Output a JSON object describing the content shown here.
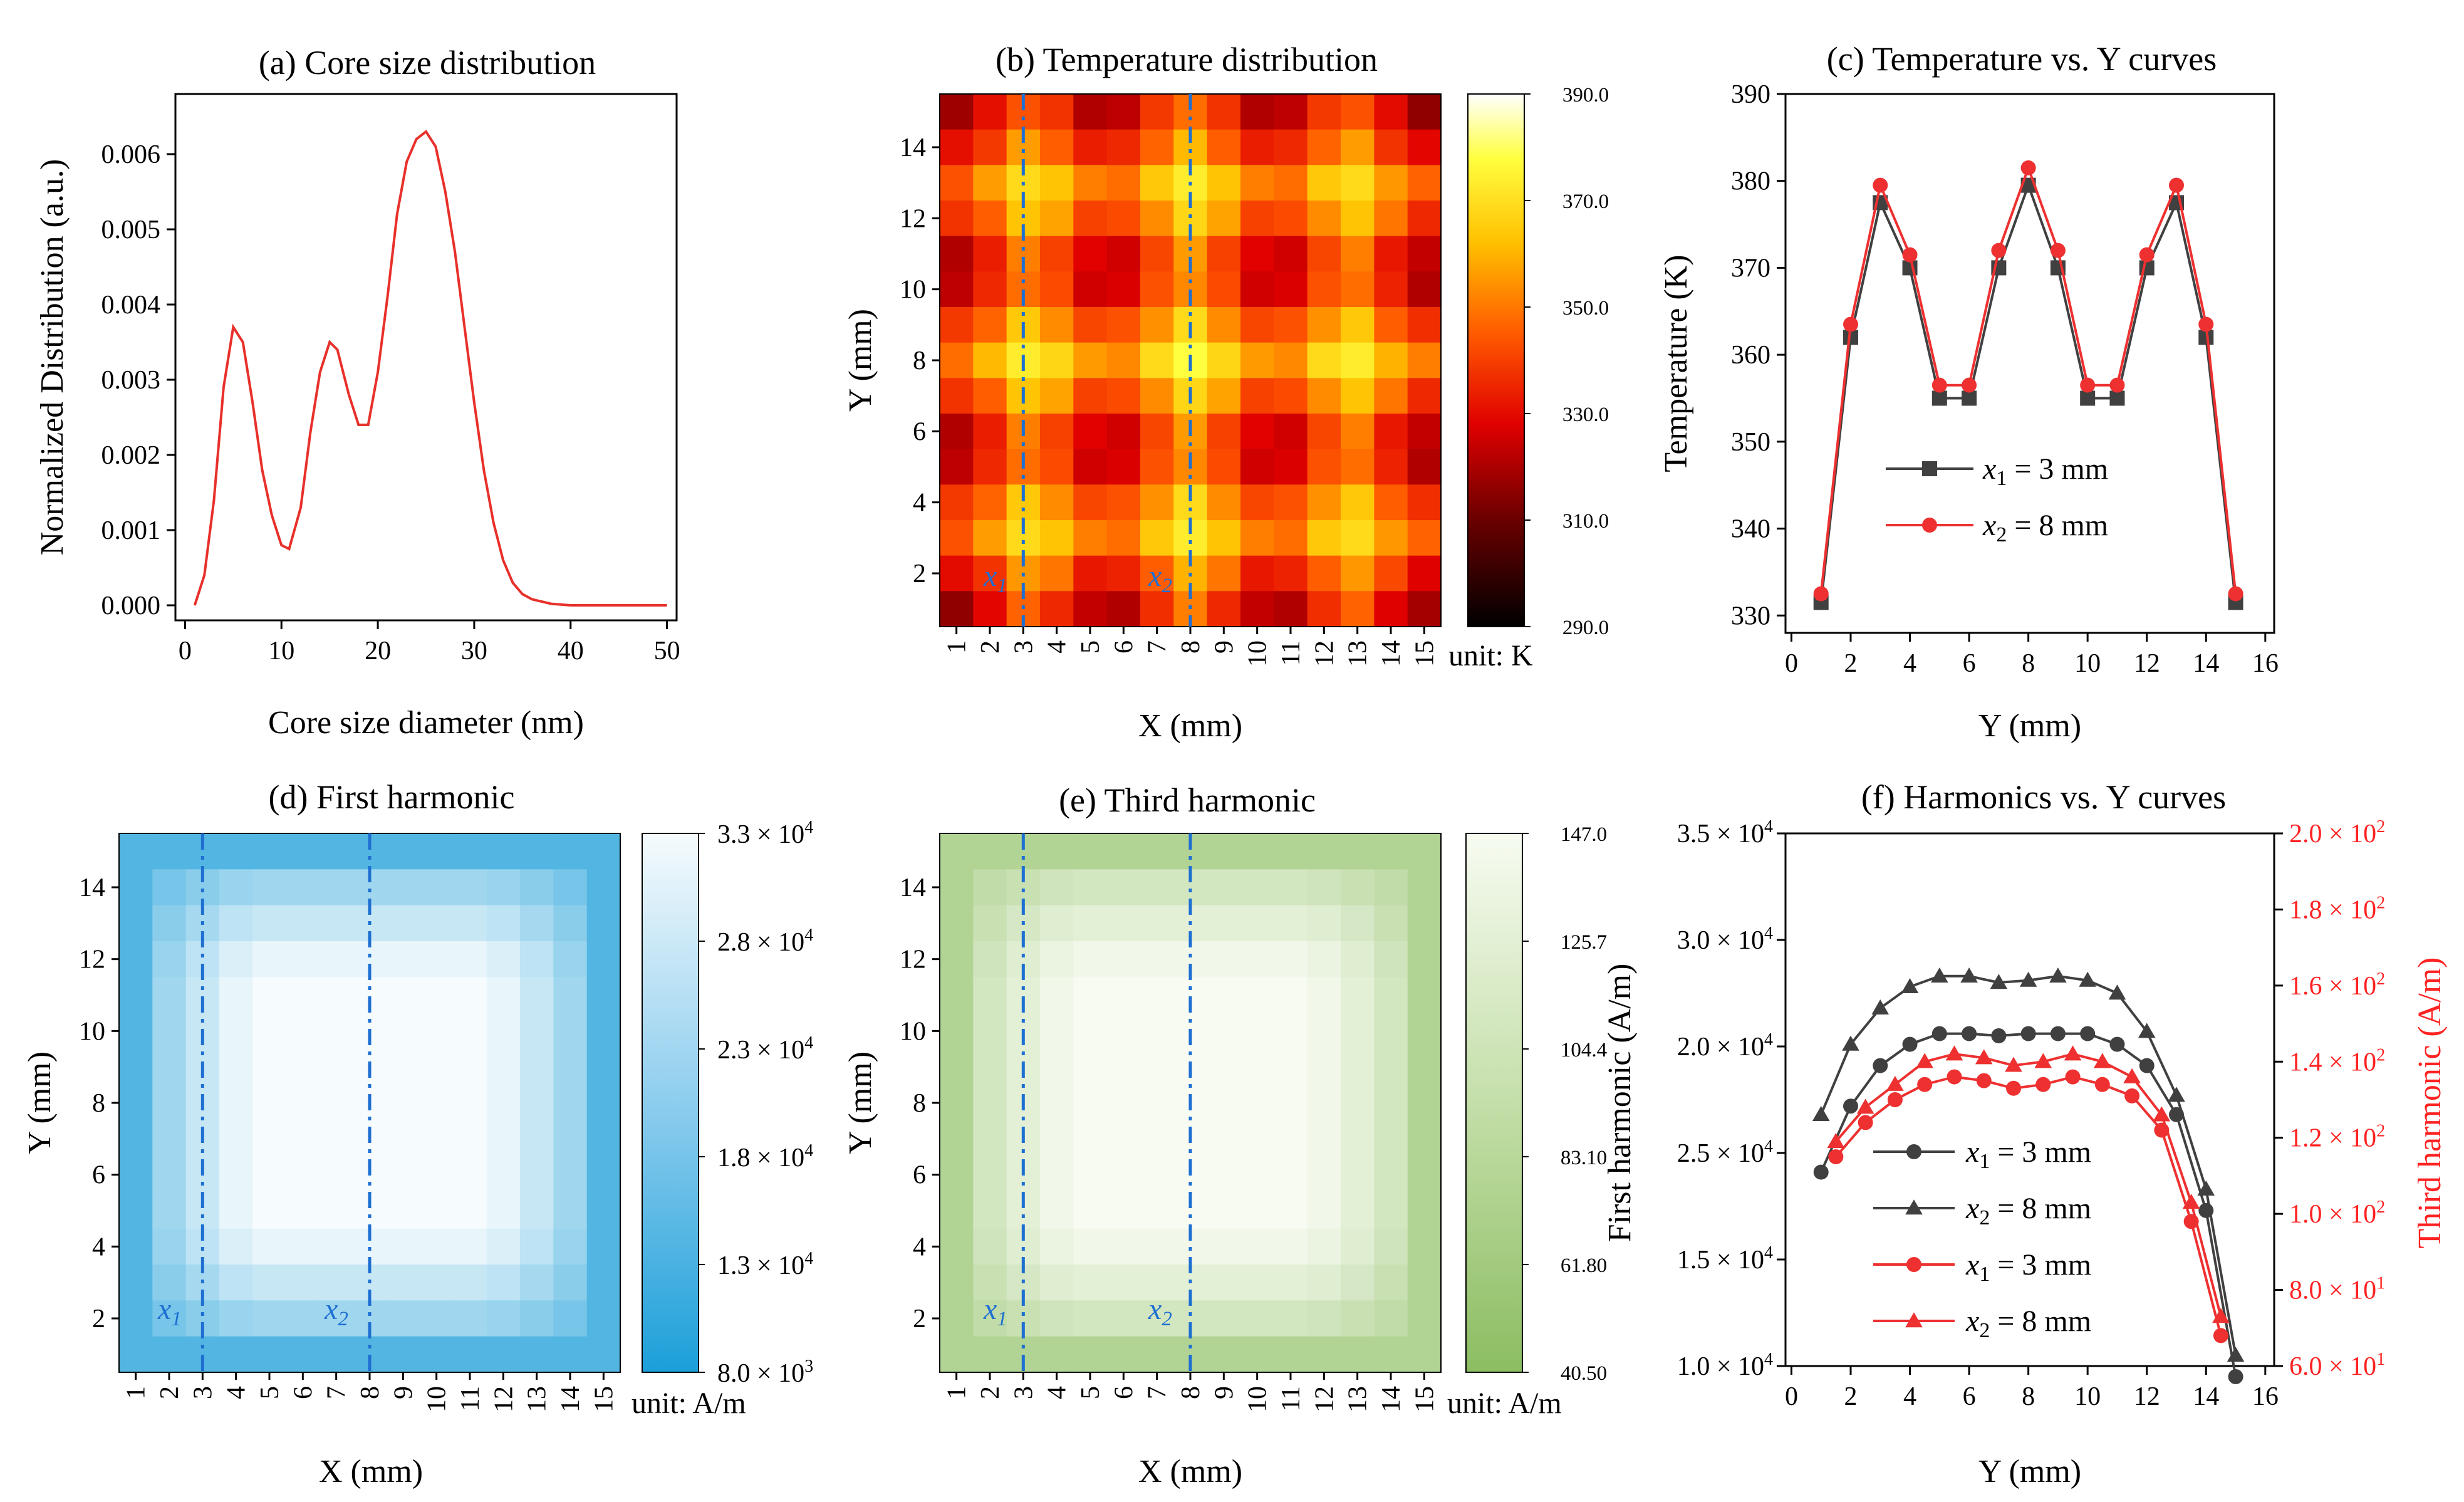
{
  "chart_data": [
    {
      "id": "a",
      "type": "line",
      "title": "(a) Core size distribution",
      "xlabel": "Core size diameter (nm)",
      "ylabel": "Normalized Distribution (a.u.)",
      "xlim": [
        -1,
        51
      ],
      "ylim": [
        -0.0002,
        0.0068
      ],
      "xticks": [
        "0",
        "10",
        "20",
        "30",
        "40",
        "50"
      ],
      "yticks": [
        "0.000",
        "0.001",
        "0.002",
        "0.003",
        "0.004",
        "0.005",
        "0.006"
      ],
      "line_color": "#e8302a",
      "series": [
        {
          "name": "distribution",
          "x": [
            1,
            2,
            3,
            4,
            5,
            6,
            7,
            8,
            9,
            10,
            10.8,
            12,
            13,
            14,
            15,
            15.8,
            17,
            18,
            19,
            20,
            21,
            22,
            23,
            24,
            25,
            26,
            27,
            28,
            29,
            30,
            31,
            32,
            33,
            34,
            35,
            36,
            38,
            40,
            42,
            44,
            46,
            48,
            50
          ],
          "y": [
            0.0,
            0.0004,
            0.0014,
            0.0029,
            0.0037,
            0.0035,
            0.0027,
            0.0018,
            0.0012,
            0.0008,
            0.00075,
            0.0013,
            0.0023,
            0.0031,
            0.0035,
            0.0034,
            0.0028,
            0.0024,
            0.0024,
            0.0031,
            0.0041,
            0.0052,
            0.0059,
            0.0062,
            0.0063,
            0.0061,
            0.0055,
            0.0047,
            0.0037,
            0.0027,
            0.0018,
            0.0011,
            0.0006,
            0.0003,
            0.00015,
            8e-05,
            2e-05,
            0.0,
            0.0,
            0.0,
            0.0,
            0.0,
            0.0
          ]
        }
      ]
    },
    {
      "id": "b",
      "type": "heatmap",
      "title": "(b) Temperature distribution",
      "xlabel": "X (mm)",
      "ylabel": "Y (mm)",
      "xticks": [
        "1",
        "2",
        "3",
        "4",
        "5",
        "6",
        "7",
        "8",
        "9",
        "10",
        "11",
        "12",
        "13",
        "14",
        "15"
      ],
      "yticks": [
        "2",
        "4",
        "6",
        "8",
        "10",
        "12",
        "14"
      ],
      "unit": "unit: K",
      "range": [
        290,
        390
      ],
      "colorbar_ticks": [
        "390.0",
        "370.0",
        "350.0",
        "330.0",
        "310.0",
        "290.0"
      ],
      "colormap": "hot",
      "marker_x1": "x",
      "marker_x1_sub": "1",
      "marker_x2": "x",
      "marker_x2_sub": "2",
      "x1": 3,
      "x2": 8
    },
    {
      "id": "c",
      "type": "line",
      "title": "(c) Temperature vs. Y curves",
      "xlabel": "Y (mm)",
      "ylabel": "Temperature (K)",
      "xlim": [
        -0.2,
        16.3
      ],
      "ylim": [
        328,
        390
      ],
      "xticks": [
        "0",
        "2",
        "4",
        "6",
        "8",
        "10",
        "12",
        "14",
        "16"
      ],
      "yticks": [
        "330",
        "340",
        "350",
        "360",
        "370",
        "380",
        "390"
      ],
      "legend": [
        {
          "pre": "x",
          "sub": "1",
          "post": " = 3 mm"
        },
        {
          "pre": "x",
          "sub": "2",
          "post": " = 8 mm"
        }
      ],
      "series": [
        {
          "name": "x1 = 3 mm",
          "color": "#404040",
          "marker": "square",
          "x": [
            1,
            2,
            3,
            4,
            5,
            6,
            7,
            8,
            9,
            10,
            11,
            12,
            13,
            14,
            15
          ],
          "y": [
            331.5,
            362,
            377.5,
            370,
            355,
            355,
            370,
            379.5,
            370,
            355,
            355,
            370,
            377.5,
            362,
            331.5
          ]
        },
        {
          "name": "x2 = 8 mm",
          "color": "#ee3030",
          "marker": "circle",
          "x": [
            1,
            2,
            3,
            4,
            5,
            6,
            7,
            8,
            9,
            10,
            11,
            12,
            13,
            14,
            15
          ],
          "y": [
            332.5,
            363.5,
            379.5,
            371.5,
            356.5,
            356.5,
            372,
            381.5,
            372,
            356.5,
            356.5,
            371.5,
            379.5,
            363.5,
            332.5
          ]
        }
      ]
    },
    {
      "id": "d",
      "type": "heatmap",
      "title": "(d) First harmonic",
      "xlabel": "X (mm)",
      "ylabel": "Y (mm)",
      "xticks": [
        "1",
        "2",
        "3",
        "4",
        "5",
        "6",
        "7",
        "8",
        "9",
        "10",
        "11",
        "12",
        "13",
        "14",
        "15"
      ],
      "yticks": [
        "2",
        "4",
        "6",
        "8",
        "10",
        "12",
        "14"
      ],
      "unit": "unit: A/m",
      "range": [
        8000,
        33000
      ],
      "colorbar_ticks": [
        {
          "m": "3.3 × 10",
          "e": "4"
        },
        {
          "m": "2.8 × 10",
          "e": "4"
        },
        {
          "m": "2.3 × 10",
          "e": "4"
        },
        {
          "m": "1.8 × 10",
          "e": "4"
        },
        {
          "m": "1.3 × 10",
          "e": "4"
        },
        {
          "m": "8.0 × 10",
          "e": "3"
        }
      ],
      "colormap": "blues",
      "marker_x1": "x",
      "marker_x1_sub": "1",
      "marker_x2": "x",
      "marker_x2_sub": "2",
      "x1": 3,
      "x2": 8
    },
    {
      "id": "e",
      "type": "heatmap",
      "title": "(e) Third harmonic",
      "xlabel": "X (mm)",
      "ylabel": "Y (mm)",
      "xticks": [
        "1",
        "2",
        "3",
        "4",
        "5",
        "6",
        "7",
        "8",
        "9",
        "10",
        "11",
        "12",
        "13",
        "14",
        "15"
      ],
      "yticks": [
        "2",
        "4",
        "6",
        "8",
        "10",
        "12",
        "14"
      ],
      "unit": "unit: A/m",
      "range": [
        40.5,
        147
      ],
      "colorbar_ticks": [
        "147.0",
        "125.7",
        "104.4",
        "83.10",
        "61.80",
        "40.50"
      ],
      "colormap": "greens",
      "marker_x1": "x",
      "marker_x1_sub": "1",
      "marker_x2": "x",
      "marker_x2_sub": "2",
      "x1": 3,
      "x2": 8
    },
    {
      "id": "f",
      "type": "line",
      "title": "(f) Harmonics vs. Y curves",
      "xlabel": "Y (mm)",
      "ylabel": "First harmonic (A/m)",
      "ylabel_right": "Third harmonic (A/m)",
      "xlim": [
        -0.2,
        16.3
      ],
      "ylim": [
        1.0,
        3.5
      ],
      "ylim_right": [
        60,
        200
      ],
      "xticks": [
        "0",
        "2",
        "4",
        "6",
        "8",
        "10",
        "12",
        "14",
        "16"
      ],
      "yticks_left": [
        {
          "m": "1.0 × 10",
          "e": "4"
        },
        {
          "m": "1.5 × 10",
          "e": "4"
        },
        {
          "m": "2.5 × 10",
          "e": "4"
        },
        {
          "m": "2.0 × 10",
          "e": "4"
        },
        {
          "m": "3.0 × 10",
          "e": "4"
        },
        {
          "m": "3.5 × 10",
          "e": "4"
        }
      ],
      "yticks_right": [
        {
          "m": "6.0 × 10",
          "e": "1"
        },
        {
          "m": "8.0 × 10",
          "e": "1"
        },
        {
          "m": "1.0 × 10",
          "e": "2"
        },
        {
          "m": "1.2 × 10",
          "e": "2"
        },
        {
          "m": "1.4 × 10",
          "e": "2"
        },
        {
          "m": "1.6 × 10",
          "e": "2"
        },
        {
          "m": "1.8 × 10",
          "e": "2"
        },
        {
          "m": "2.0 × 10",
          "e": "2"
        }
      ],
      "legend": [
        {
          "pre": "x",
          "sub": "1",
          "post": " = 3 mm"
        },
        {
          "pre": "x",
          "sub": "2",
          "post": " = 8 mm"
        },
        {
          "pre": "x",
          "sub": "1",
          "post": " = 3 mm"
        },
        {
          "pre": "x",
          "sub": "2",
          "post": " = 8 mm"
        }
      ],
      "series": [
        {
          "name": "First x1 = 3 mm",
          "axis": "left",
          "color": "#404040",
          "marker": "circle",
          "x": [
            1,
            2,
            3,
            4,
            5,
            6,
            7,
            8,
            9,
            10,
            11,
            12,
            13,
            14,
            15
          ],
          "y": [
            1.91,
            2.22,
            2.41,
            2.51,
            2.56,
            2.56,
            2.55,
            2.56,
            2.56,
            2.56,
            2.51,
            2.41,
            2.18,
            1.73,
            0.95
          ]
        },
        {
          "name": "First x2 = 8 mm",
          "axis": "left",
          "color": "#404040",
          "marker": "triangle",
          "x": [
            1,
            2,
            3,
            4,
            5,
            6,
            7,
            8,
            9,
            10,
            11,
            12,
            13,
            14,
            15
          ],
          "y": [
            2.18,
            2.51,
            2.68,
            2.78,
            2.83,
            2.83,
            2.8,
            2.81,
            2.83,
            2.81,
            2.75,
            2.57,
            2.27,
            1.83,
            1.05
          ]
        },
        {
          "name": "Third x1 = 3 mm",
          "axis": "right",
          "color": "#ee3030",
          "marker": "circle",
          "x": [
            1.5,
            2.5,
            3.5,
            4.5,
            5.5,
            6.5,
            7.5,
            8.5,
            9.5,
            10.5,
            11.5,
            12.5,
            13.5,
            14.5
          ],
          "y": [
            115,
            124,
            130,
            134,
            136,
            135,
            133,
            134,
            136,
            134,
            131,
            122,
            98,
            68
          ]
        },
        {
          "name": "Third x2 = 8 mm",
          "axis": "right",
          "color": "#ee3030",
          "marker": "triangle",
          "x": [
            1.5,
            2.5,
            3.5,
            4.5,
            5.5,
            6.5,
            7.5,
            8.5,
            9.5,
            10.5,
            11.5,
            12.5,
            13.5,
            14.5
          ],
          "y": [
            119,
            128,
            134,
            140,
            142,
            141,
            139,
            140,
            142,
            140,
            136,
            126,
            103,
            73
          ]
        }
      ]
    }
  ]
}
